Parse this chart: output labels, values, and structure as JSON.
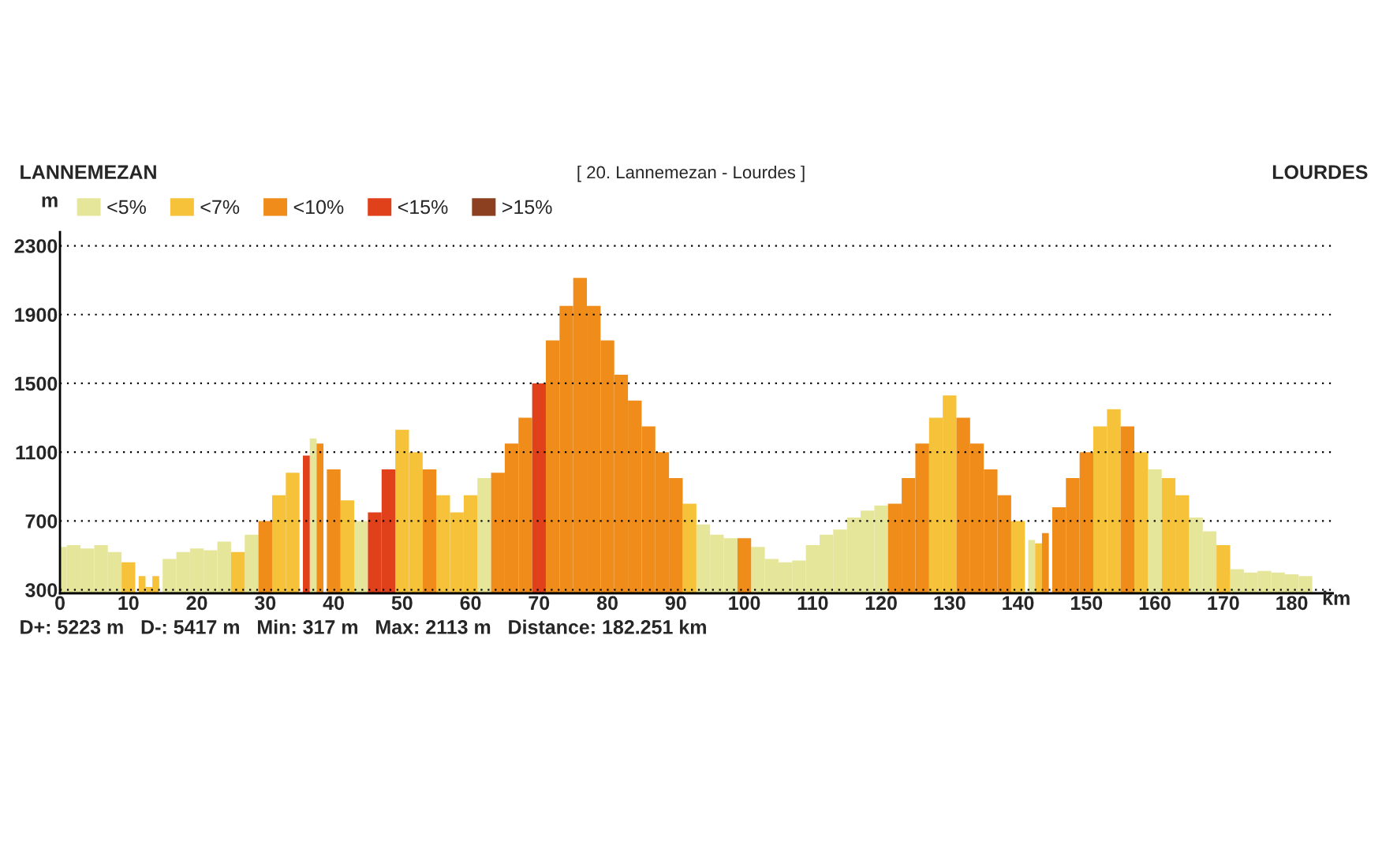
{
  "chart_data": {
    "type": "bar",
    "title": "[ 20. Lannemezan - Lourdes ]",
    "xlabel": "km",
    "ylabel": "m",
    "annotations": [
      "LANNEMEZAN",
      "LOURDES",
      "D+: 5223 m   D-: 5417 m   Min: 317 m   Max: 2113 m   Distance: 182.251 km"
    ],
    "series": [
      {
        "name": "<5%",
        "color": "#e6e69a",
        "x": [
          0,
          2,
          4,
          6,
          8,
          16,
          18,
          20,
          22,
          24,
          28,
          37,
          44,
          62,
          94,
          96,
          98,
          102,
          104,
          106,
          108,
          110,
          112,
          114,
          116,
          118,
          120,
          142,
          160,
          166,
          168,
          172,
          174,
          176,
          178,
          180,
          182
        ],
        "values": [
          550,
          560,
          540,
          560,
          520,
          480,
          520,
          540,
          530,
          580,
          620,
          1180,
          700,
          950,
          680,
          620,
          600,
          550,
          480,
          460,
          470,
          560,
          620,
          650,
          720,
          760,
          790,
          590,
          1000,
          720,
          640,
          420,
          400,
          410,
          400,
          390,
          380
        ]
      },
      {
        "name": "<7%",
        "color": "#f5c23a",
        "x": [
          10,
          12,
          13,
          14,
          26,
          32,
          34,
          42,
          50,
          52,
          56,
          58,
          60,
          92,
          128,
          130,
          140,
          143,
          152,
          154,
          158,
          162,
          164,
          170
        ],
        "values": [
          460,
          380,
          317,
          380,
          520,
          850,
          980,
          820,
          1230,
          1100,
          850,
          750,
          850,
          800,
          1300,
          1430,
          700,
          570,
          1250,
          1350,
          1100,
          950,
          850,
          560
        ]
      },
      {
        "name": "<10%",
        "color": "#ef8c1a",
        "x": [
          30,
          38,
          40,
          54,
          64,
          66,
          68,
          72,
          74,
          76,
          78,
          80,
          82,
          84,
          86,
          88,
          90,
          100,
          122,
          124,
          126,
          132,
          134,
          136,
          138,
          144,
          146,
          148,
          150,
          156
        ],
        "values": [
          700,
          1150,
          1000,
          1000,
          980,
          1150,
          1300,
          1750,
          1950,
          2113,
          1950,
          1750,
          1550,
          1400,
          1250,
          1100,
          950,
          600,
          800,
          950,
          1150,
          1300,
          1150,
          1000,
          850,
          630,
          780,
          950,
          1100,
          1250
        ]
      },
      {
        "name": "<15%",
        "color": "#e0401a",
        "x": [
          36,
          46,
          48,
          70
        ],
        "values": [
          1080,
          750,
          1000,
          1500
        ]
      },
      {
        "name": ">15%",
        "color": "#8c4020"
      }
    ],
    "xlim": [
      0,
      186
    ],
    "ylim": [
      280,
      2380
    ],
    "xticks": [
      0,
      10,
      20,
      30,
      40,
      50,
      60,
      70,
      80,
      90,
      100,
      110,
      120,
      130,
      140,
      150,
      160,
      170,
      180
    ],
    "yticks": [
      300,
      700,
      1100,
      1500,
      1900,
      2300
    ],
    "grid": "y",
    "legend": "top left"
  }
}
